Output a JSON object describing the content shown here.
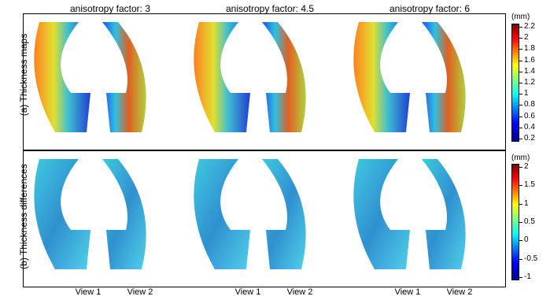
{
  "columns": [
    "anisotropy factor: 3",
    "anisotropy factor: 4.5",
    "anisotropy factor: 6"
  ],
  "rows": [
    "(a) Thickness maps",
    "(b) Thickness differences"
  ],
  "views": [
    "View 1",
    "View 2",
    "View 1",
    "View 2",
    "View 1",
    "View 2"
  ],
  "colorbar_top": {
    "unit": "(mm)",
    "ticks": [
      "2.2",
      "2",
      "1.8",
      "1.6",
      "1.4",
      "1.2",
      "1",
      "0.8",
      "0.6",
      "0.4",
      "0.2"
    ]
  },
  "colorbar_bottom": {
    "unit": "(mm)",
    "ticks": [
      "2",
      "1.5",
      "1",
      "0.5",
      "0",
      "-0.5",
      "-1"
    ]
  },
  "colors": {
    "jet": [
      "#00008f",
      "#0000ff",
      "#00ffff",
      "#ffff00",
      "#ff0000",
      "#800000"
    ]
  }
}
